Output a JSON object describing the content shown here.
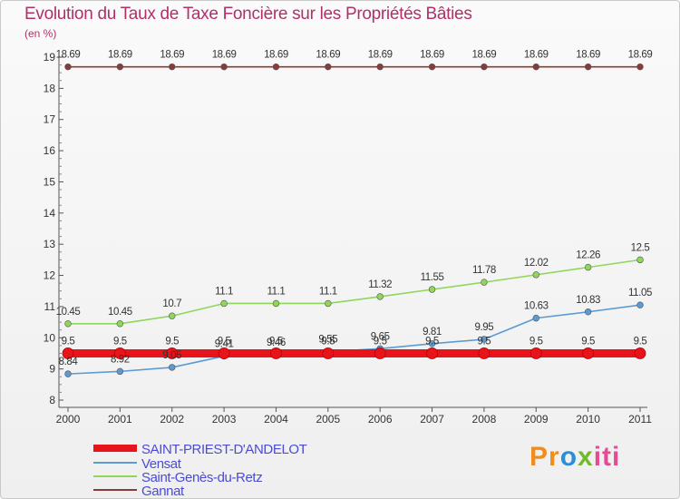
{
  "chart_data": {
    "type": "line",
    "title": "Evolution du Taux de Taxe Foncière sur les Propriétés Bâties",
    "subtitle": "(en %)",
    "x": [
      "2000",
      "2001",
      "2002",
      "2003",
      "2004",
      "2005",
      "2006",
      "2007",
      "2008",
      "2009",
      "2010",
      "2011"
    ],
    "ylim": [
      8,
      19
    ],
    "yticks": [
      "8",
      "9",
      "10",
      "11",
      "12",
      "13",
      "14",
      "15",
      "16",
      "17",
      "18",
      "19"
    ],
    "grid": false,
    "legend_position": "bottom-left",
    "series": [
      {
        "name": "SAINT-PRIEST-D'ANDELOT",
        "color": "#e8141b",
        "values": [
          9.5,
          9.5,
          9.5,
          9.5,
          9.5,
          9.5,
          9.5,
          9.5,
          9.5,
          9.5,
          9.5,
          9.5
        ],
        "labels": [
          "9.5",
          "9.5",
          "9.5",
          "9.5",
          "9.5",
          "9.5",
          "9.5",
          "9.5",
          "9.5",
          "9.5",
          "9.5",
          "9.5"
        ]
      },
      {
        "name": "Vensat",
        "color": "#5b9bd2",
        "values": [
          8.84,
          8.92,
          9.05,
          9.41,
          9.46,
          9.55,
          9.65,
          9.81,
          9.95,
          10.63,
          10.83,
          11.05
        ],
        "labels": [
          "8.84",
          "8.92",
          "9.05",
          "9.41",
          "9.46",
          "9.55",
          "9.65",
          "9.81",
          "9.95",
          "10.63",
          "10.83",
          "11.05"
        ]
      },
      {
        "name": "Saint-Genès-du-Retz",
        "color": "#8fd65b",
        "values": [
          10.45,
          10.45,
          10.7,
          11.1,
          11.1,
          11.1,
          11.32,
          11.55,
          11.78,
          12.02,
          12.26,
          12.5
        ],
        "labels": [
          "10.45",
          "10.45",
          "10.7",
          "11.1",
          "11.1",
          "11.1",
          "11.32",
          "11.55",
          "11.78",
          "12.02",
          "12.26",
          "12.5"
        ]
      },
      {
        "name": "Gannat",
        "color": "#8b3a3a",
        "values": [
          18.69,
          18.69,
          18.69,
          18.69,
          18.69,
          18.69,
          18.69,
          18.69,
          18.69,
          18.69,
          18.69,
          18.69
        ],
        "labels": [
          "18.69",
          "18.69",
          "18.69",
          "18.69",
          "18.69",
          "18.69",
          "18.69",
          "18.69",
          "18.69",
          "18.69",
          "18.69",
          "18.69"
        ]
      }
    ]
  },
  "logo": {
    "parts": [
      "Pr",
      "o",
      "x",
      "iti"
    ]
  }
}
